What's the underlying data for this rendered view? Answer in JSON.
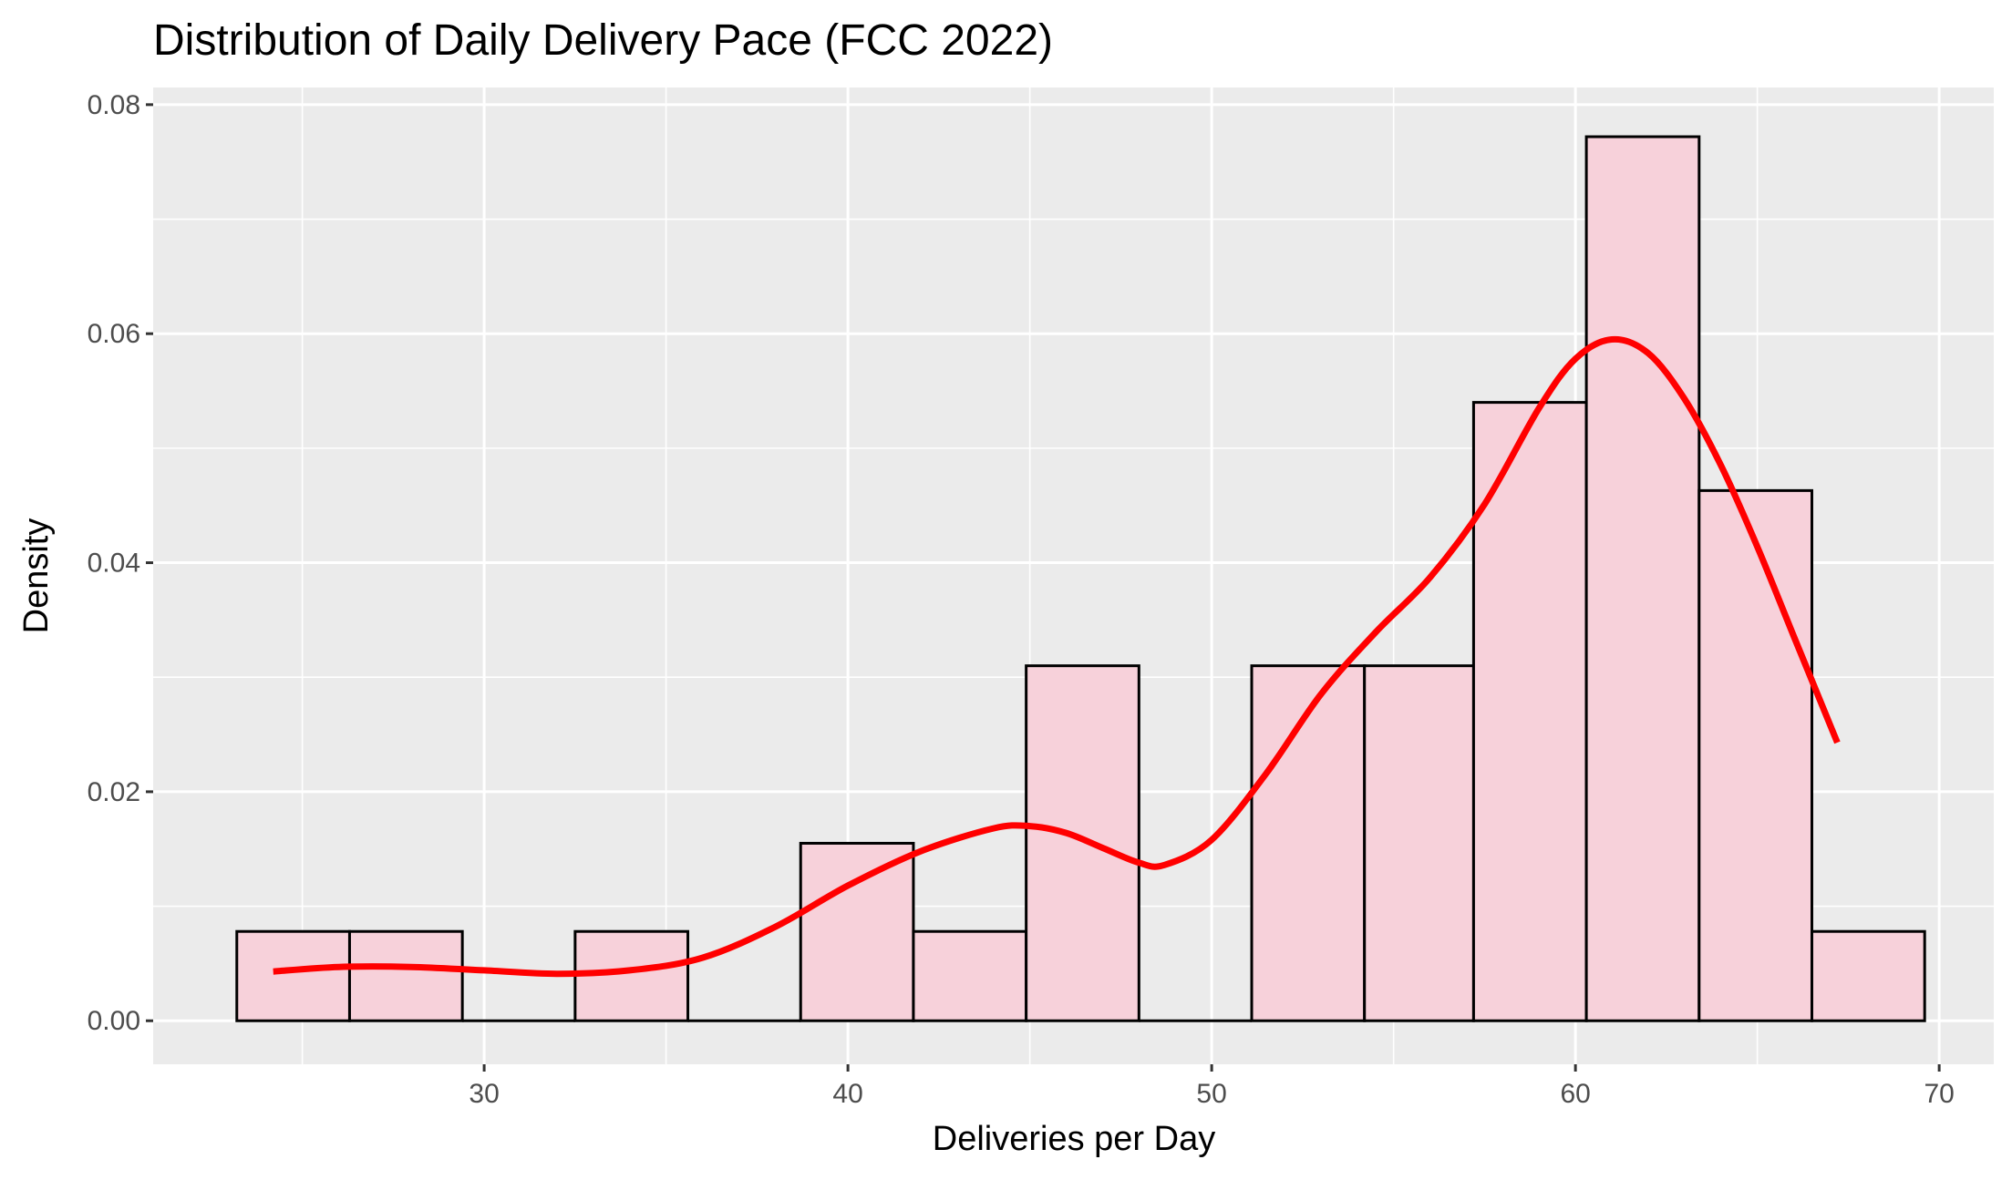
{
  "chart_data": {
    "type": "bar",
    "subtype": "histogram with density curve",
    "title": "Distribution of Daily Delivery Pace (FCC 2022)",
    "xlabel": "Deliveries per Day",
    "ylabel": "Density",
    "xlim": [
      20.9,
      71.5
    ],
    "ylim": [
      -0.0038,
      0.0815
    ],
    "x_ticks": [
      30,
      40,
      50,
      60,
      70
    ],
    "x_minor_ticks": [
      25,
      35,
      45,
      55,
      65
    ],
    "y_ticks": [
      0.0,
      0.02,
      0.04,
      0.06,
      0.08
    ],
    "y_tick_labels": [
      "0.00",
      "0.02",
      "0.04",
      "0.06",
      "0.08"
    ],
    "y_minor_ticks": [
      0.01,
      0.03,
      0.05,
      0.07
    ],
    "grid": true,
    "bin_width": 3.1,
    "bins": [
      {
        "x0": 23.2,
        "x1": 26.3,
        "density": 0.0078
      },
      {
        "x0": 26.3,
        "x1": 29.4,
        "density": 0.0078
      },
      {
        "x0": 29.4,
        "x1": 32.5,
        "density": 0.0
      },
      {
        "x0": 32.5,
        "x1": 35.6,
        "density": 0.0078
      },
      {
        "x0": 35.6,
        "x1": 38.7,
        "density": 0.0
      },
      {
        "x0": 38.7,
        "x1": 41.8,
        "density": 0.0155
      },
      {
        "x0": 41.8,
        "x1": 44.9,
        "density": 0.0078
      },
      {
        "x0": 44.9,
        "x1": 48.0,
        "density": 0.031
      },
      {
        "x0": 48.0,
        "x1": 51.1,
        "density": 0.0
      },
      {
        "x0": 51.1,
        "x1": 54.2,
        "density": 0.031
      },
      {
        "x0": 54.2,
        "x1": 57.2,
        "density": 0.031
      },
      {
        "x0": 57.2,
        "x1": 60.3,
        "density": 0.054
      },
      {
        "x0": 60.3,
        "x1": 63.4,
        "density": 0.0772
      },
      {
        "x0": 63.4,
        "x1": 66.5,
        "density": 0.0463
      },
      {
        "x0": 66.5,
        "x1": 69.6,
        "density": 0.0078
      }
    ],
    "density_curve": {
      "x": [
        24.2,
        26,
        28,
        30,
        32,
        34,
        36,
        38,
        40,
        42,
        44,
        45,
        46,
        47,
        48,
        48.7,
        50,
        51.5,
        53,
        54.5,
        56,
        57.5,
        59,
        60,
        61,
        62,
        63,
        64,
        65,
        66,
        67.2
      ],
      "y": [
        0.0043,
        0.0047,
        0.0047,
        0.0044,
        0.0041,
        0.0044,
        0.0055,
        0.0082,
        0.0118,
        0.0148,
        0.0168,
        0.017,
        0.0164,
        0.0151,
        0.0138,
        0.0136,
        0.0158,
        0.0216,
        0.0285,
        0.0339,
        0.0387,
        0.0451,
        0.0535,
        0.0578,
        0.0595,
        0.0583,
        0.0543,
        0.0485,
        0.0414,
        0.0336,
        0.0243
      ]
    },
    "colors": {
      "panel_background": "#EBEBEB",
      "grid_line": "#FFFFFF",
      "bar_fill": "#F7D1DA",
      "bar_outline": "#000000",
      "density_line": "#FF0000",
      "tick_label": "#4D4D4D",
      "tick_mark": "#333333"
    }
  }
}
